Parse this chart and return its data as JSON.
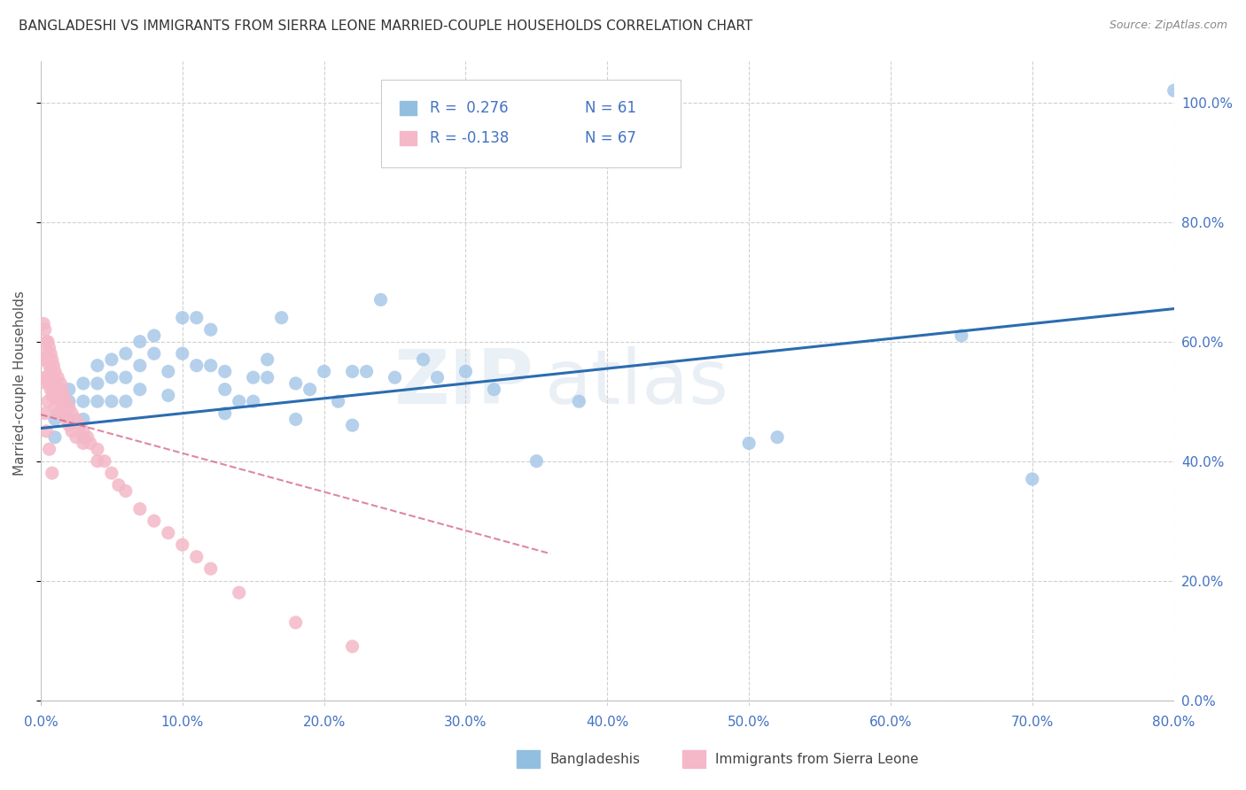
{
  "title": "BANGLADESHI VS IMMIGRANTS FROM SIERRA LEONE MARRIED-COUPLE HOUSEHOLDS CORRELATION CHART",
  "source": "Source: ZipAtlas.com",
  "ylabel": "Married-couple Households",
  "xlim": [
    0.0,
    0.8
  ],
  "ylim": [
    -0.01,
    1.07
  ],
  "yticks": [
    0.0,
    0.2,
    0.4,
    0.6,
    0.8,
    1.0
  ],
  "xticks": [
    0.0,
    0.1,
    0.2,
    0.3,
    0.4,
    0.5,
    0.6,
    0.7,
    0.8
  ],
  "blue_dot_color": "#a8c8e8",
  "pink_dot_color": "#f4b8c8",
  "blue_line_color": "#2b6cb0",
  "pink_line_color": "#d46080",
  "blue_legend_color": "#92bfe0",
  "pink_legend_color": "#f4b8c8",
  "axis_label_color": "#4472c4",
  "text_color": "#333333",
  "legend_text_color": "#4472c4",
  "legend_val_color": "#4472c4",
  "legend_R_blue": "R =  0.276",
  "legend_N_blue": "N = 61",
  "legend_R_pink": "R = -0.138",
  "legend_N_pink": "N = 67",
  "legend_label_blue": "Bangladeshis",
  "legend_label_pink": "Immigrants from Sierra Leone",
  "blue_scatter_x": [
    0.01,
    0.01,
    0.02,
    0.02,
    0.02,
    0.03,
    0.03,
    0.03,
    0.03,
    0.04,
    0.04,
    0.04,
    0.05,
    0.05,
    0.05,
    0.06,
    0.06,
    0.06,
    0.07,
    0.07,
    0.07,
    0.08,
    0.08,
    0.09,
    0.09,
    0.1,
    0.1,
    0.11,
    0.11,
    0.12,
    0.12,
    0.13,
    0.13,
    0.14,
    0.15,
    0.15,
    0.16,
    0.16,
    0.17,
    0.18,
    0.19,
    0.2,
    0.21,
    0.22,
    0.23,
    0.24,
    0.25,
    0.27,
    0.28,
    0.3,
    0.32,
    0.35,
    0.38,
    0.5,
    0.52,
    0.65,
    0.7,
    0.13,
    0.18,
    0.22,
    0.8
  ],
  "blue_scatter_y": [
    0.47,
    0.44,
    0.52,
    0.5,
    0.47,
    0.53,
    0.5,
    0.47,
    0.44,
    0.56,
    0.53,
    0.5,
    0.57,
    0.54,
    0.5,
    0.58,
    0.54,
    0.5,
    0.6,
    0.56,
    0.52,
    0.61,
    0.58,
    0.55,
    0.51,
    0.64,
    0.58,
    0.64,
    0.56,
    0.62,
    0.56,
    0.55,
    0.52,
    0.5,
    0.54,
    0.5,
    0.57,
    0.54,
    0.64,
    0.53,
    0.52,
    0.55,
    0.5,
    0.55,
    0.55,
    0.67,
    0.54,
    0.57,
    0.54,
    0.55,
    0.52,
    0.4,
    0.5,
    0.43,
    0.44,
    0.61,
    0.37,
    0.48,
    0.47,
    0.46,
    1.02
  ],
  "pink_scatter_x": [
    0.002,
    0.002,
    0.003,
    0.003,
    0.003,
    0.004,
    0.004,
    0.004,
    0.005,
    0.005,
    0.005,
    0.005,
    0.006,
    0.006,
    0.006,
    0.007,
    0.007,
    0.007,
    0.008,
    0.008,
    0.008,
    0.009,
    0.009,
    0.01,
    0.01,
    0.01,
    0.012,
    0.012,
    0.012,
    0.014,
    0.014,
    0.015,
    0.015,
    0.016,
    0.016,
    0.018,
    0.018,
    0.02,
    0.02,
    0.022,
    0.022,
    0.025,
    0.025,
    0.028,
    0.03,
    0.03,
    0.033,
    0.035,
    0.04,
    0.04,
    0.045,
    0.05,
    0.055,
    0.06,
    0.07,
    0.08,
    0.09,
    0.1,
    0.11,
    0.12,
    0.14,
    0.18,
    0.22,
    0.003,
    0.004,
    0.006,
    0.008
  ],
  "pink_scatter_y": [
    0.63,
    0.57,
    0.62,
    0.58,
    0.54,
    0.6,
    0.57,
    0.53,
    0.6,
    0.57,
    0.54,
    0.5,
    0.59,
    0.56,
    0.53,
    0.58,
    0.55,
    0.52,
    0.57,
    0.54,
    0.51,
    0.56,
    0.53,
    0.55,
    0.52,
    0.49,
    0.54,
    0.51,
    0.48,
    0.53,
    0.5,
    0.52,
    0.49,
    0.51,
    0.48,
    0.5,
    0.47,
    0.49,
    0.46,
    0.48,
    0.45,
    0.47,
    0.44,
    0.46,
    0.45,
    0.43,
    0.44,
    0.43,
    0.42,
    0.4,
    0.4,
    0.38,
    0.36,
    0.35,
    0.32,
    0.3,
    0.28,
    0.26,
    0.24,
    0.22,
    0.18,
    0.13,
    0.09,
    0.48,
    0.45,
    0.42,
    0.38
  ],
  "blue_trend_x": [
    0.0,
    0.8
  ],
  "blue_trend_y": [
    0.455,
    0.655
  ],
  "pink_trend_x": [
    0.0,
    0.36
  ],
  "pink_trend_y": [
    0.478,
    0.245
  ],
  "background_color": "#ffffff",
  "watermark_zip": "ZIP",
  "watermark_atlas": "atlas",
  "title_fontsize": 11,
  "axis_fontsize": 10,
  "tick_fontsize": 11
}
